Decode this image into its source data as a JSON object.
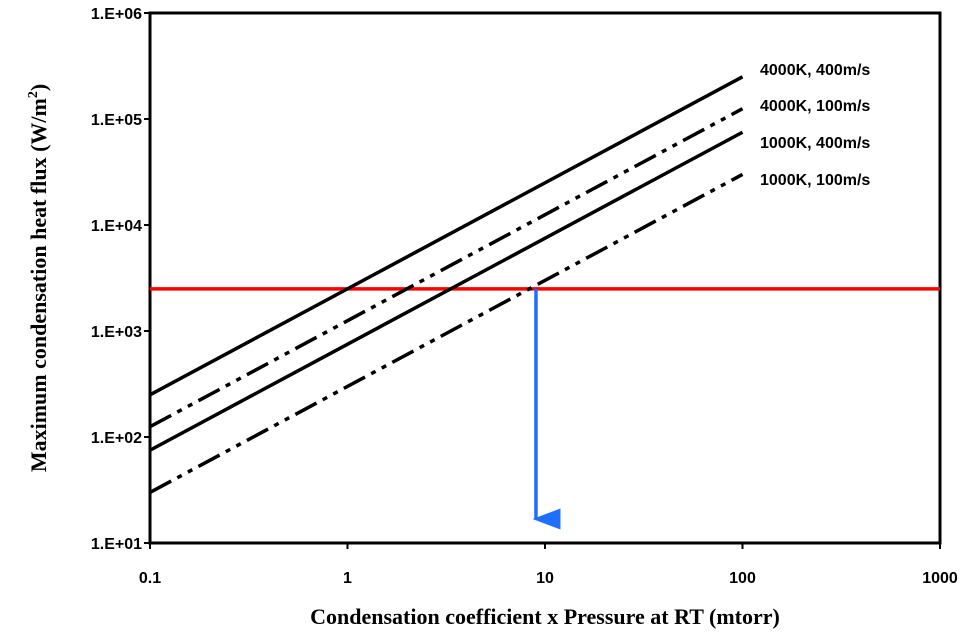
{
  "chart_data": {
    "type": "line",
    "xlabel": "Condensation coefficient x Pressure at RT (mtorr)",
    "ylabel_main": "Maximum condensation heat flux (W/m",
    "ylabel_sup": "2",
    "ylabel_close": ")",
    "x_scale": "log",
    "y_scale": "log",
    "xlim": [
      0.1,
      1000
    ],
    "ylim": [
      10,
      1000000
    ],
    "x_ticks": [
      {
        "value": 0.1,
        "label": "0.1"
      },
      {
        "value": 1,
        "label": "1"
      },
      {
        "value": 10,
        "label": "10"
      },
      {
        "value": 100,
        "label": "100"
      },
      {
        "value": 1000,
        "label": "1000"
      }
    ],
    "y_ticks": [
      {
        "value": 10,
        "label": "1.E+01"
      },
      {
        "value": 100,
        "label": "1.E+02"
      },
      {
        "value": 1000,
        "label": "1.E+03"
      },
      {
        "value": 10000,
        "label": "1.E+04"
      },
      {
        "value": 100000,
        "label": "1.E+05"
      },
      {
        "value": 1000000,
        "label": "1.E+06"
      }
    ],
    "grid": false,
    "legend": "none",
    "series": [
      {
        "name": "4000K, 400m/s",
        "style": "solid",
        "x": [
          0.1,
          100
        ],
        "y": [
          250,
          250000
        ]
      },
      {
        "name": "4000K, 100m/s",
        "style": "dash-dot-dot",
        "x": [
          0.1,
          100
        ],
        "y": [
          125,
          125000
        ]
      },
      {
        "name": "1000K, 400m/s",
        "style": "solid",
        "x": [
          0.1,
          100
        ],
        "y": [
          75,
          75000
        ]
      },
      {
        "name": "1000K, 100m/s",
        "style": "dash-dot-dot",
        "x": [
          0.1,
          100
        ],
        "y": [
          30,
          30000
        ]
      }
    ],
    "threshold_line": {
      "y": 2500,
      "color": "#ff0000"
    },
    "arrow": {
      "x": 9,
      "y_from": 2500,
      "y_to": 10,
      "color": "#1f6fff"
    }
  }
}
